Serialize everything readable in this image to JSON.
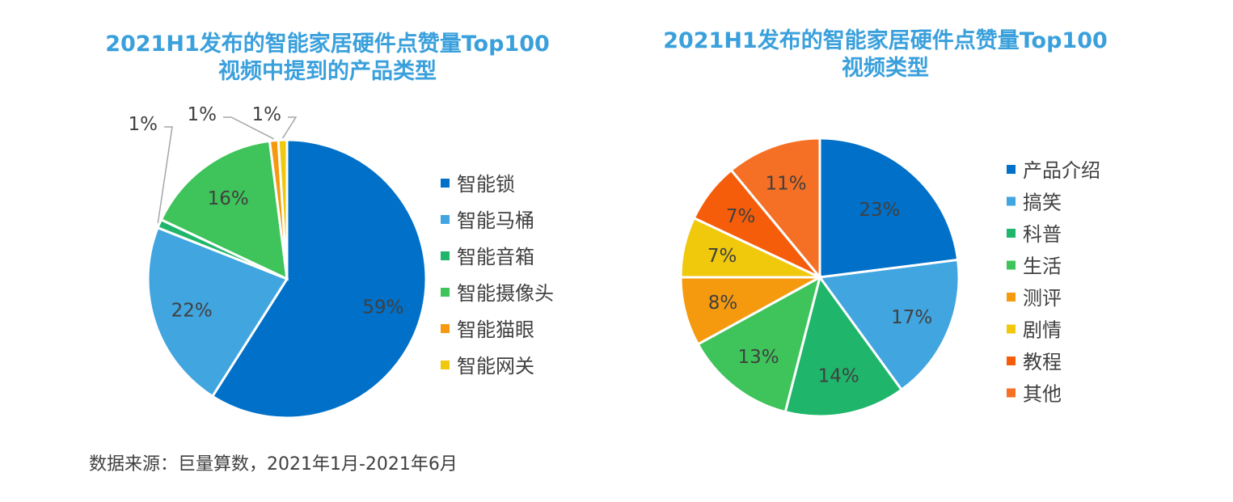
{
  "source_note": "数据来源：巨量算数，2021年1月-2021年6月",
  "chart_data": [
    {
      "type": "pie",
      "title_lines": [
        "2021H1发布的智能家居硬件点赞量Top100",
        "视频中提到的产品类型"
      ],
      "slices": [
        {
          "label": "智能锁",
          "value": 59,
          "display": "59%",
          "color": "#0070c8"
        },
        {
          "label": "智能马桶",
          "value": 22,
          "display": "22%",
          "color": "#41a5e0"
        },
        {
          "label": "智能音箱",
          "value": 1,
          "display": "1%",
          "color": "#1fb56a"
        },
        {
          "label": "智能摄像头",
          "value": 16,
          "display": "16%",
          "color": "#3ec45a"
        },
        {
          "label": "智能猫眼",
          "value": 1,
          "display": "1%",
          "color": "#f59a0e"
        },
        {
          "label": "智能网关",
          "value": 1,
          "display": "1%",
          "color": "#f0c80c"
        }
      ],
      "legend_position": "right"
    },
    {
      "type": "pie",
      "title_lines": [
        "2021H1发布的智能家居硬件点赞量Top100",
        "视频类型"
      ],
      "slices": [
        {
          "label": "产品介绍",
          "value": 23,
          "display": "23%",
          "color": "#0070c8"
        },
        {
          "label": "搞笑",
          "value": 17,
          "display": "17%",
          "color": "#41a5e0"
        },
        {
          "label": "科普",
          "value": 14,
          "display": "14%",
          "color": "#1fb56a"
        },
        {
          "label": "生活",
          "value": 13,
          "display": "13%",
          "color": "#3ec45a"
        },
        {
          "label": "测评",
          "value": 8,
          "display": "8%",
          "color": "#f59a0e"
        },
        {
          "label": "剧情",
          "value": 7,
          "display": "7%",
          "color": "#f0c80c"
        },
        {
          "label": "教程",
          "value": 7,
          "display": "7%",
          "color": "#f55d0a"
        },
        {
          "label": "其他",
          "value": 11,
          "display": "11%",
          "color": "#f57025"
        }
      ],
      "legend_position": "right"
    }
  ]
}
